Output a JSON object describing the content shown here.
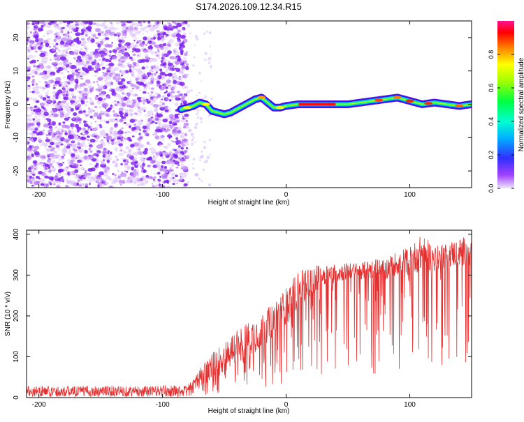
{
  "title": "S174.2026.109.12.34.R15",
  "colors": {
    "cloud": "#8a2be2",
    "signal_line": "#e53030",
    "axis": "#000000",
    "colormap": [
      "#e0e0ff",
      "#9b30ff",
      "#4040ff",
      "#00c8ff",
      "#00ff80",
      "#80ff00",
      "#ffff00",
      "#ff8000",
      "#ff0000",
      "#ff1090"
    ]
  },
  "chart_data": [
    {
      "type": "heatmap",
      "name": "spectrogram",
      "xlabel": "Height of straight line (km)",
      "ylabel": "Frequency (Hz)",
      "xlim": [
        -210,
        150
      ],
      "ylim": [
        -25,
        25
      ],
      "x_ticks": [
        -200,
        -100,
        0,
        100
      ],
      "y_ticks": [
        -20,
        -10,
        0,
        10,
        20
      ],
      "noise_region": {
        "x_range": [
          -210,
          -80
        ],
        "freq_range": [
          -25,
          25
        ]
      },
      "ridge": {
        "x": [
          -85,
          -80,
          -75,
          -70,
          -65,
          -60,
          -55,
          -50,
          -45,
          -40,
          -35,
          -30,
          -25,
          -20,
          -15,
          -10,
          -5,
          0,
          10,
          20,
          30,
          40,
          50,
          60,
          70,
          80,
          90,
          100,
          110,
          120,
          130,
          140,
          150
        ],
        "freq": [
          -1.5,
          -1.0,
          -0.5,
          0.5,
          0,
          -2,
          -2.5,
          -3,
          -2.5,
          -1.5,
          -0.5,
          0.5,
          1.5,
          2,
          0.5,
          -1,
          -1,
          -0.5,
          0,
          0,
          0,
          0,
          0,
          0.5,
          1,
          1.5,
          2,
          1,
          0,
          0.5,
          0,
          -0.5,
          0
        ]
      },
      "colorbar": {
        "label": "Normalized spectral amplitude",
        "range": [
          0.0,
          1.0
        ],
        "ticks": [
          0.0,
          0.2,
          0.4,
          0.6,
          0.8
        ],
        "tick_labels": [
          "0.0",
          "0.2",
          "0.4",
          "0.6",
          "0.8"
        ]
      }
    },
    {
      "type": "line",
      "name": "snr",
      "xlabel": "Height of straight line (km)",
      "ylabel": "SNR (10 * v/v)",
      "xlim": [
        -210,
        150
      ],
      "ylim": [
        0,
        410
      ],
      "x_ticks": [
        -200,
        -100,
        0,
        100
      ],
      "y_ticks": [
        0,
        100,
        200,
        300,
        400
      ],
      "series": [
        {
          "name": "SNR",
          "x": [
            -210,
            -180,
            -150,
            -120,
            -100,
            -80,
            -70,
            -60,
            -50,
            -40,
            -30,
            -20,
            -10,
            0,
            10,
            20,
            30,
            40,
            50,
            60,
            70,
            80,
            90,
            100,
            110,
            120,
            130,
            140,
            150
          ],
          "upper": [
            30,
            28,
            30,
            28,
            30,
            30,
            70,
            110,
            140,
            170,
            190,
            210,
            230,
            270,
            310,
            320,
            330,
            330,
            330,
            330,
            340,
            340,
            360,
            370,
            400,
            370,
            380,
            390,
            400
          ],
          "base": [
            12,
            12,
            12,
            12,
            12,
            15,
            25,
            40,
            60,
            80,
            100,
            120,
            150,
            180,
            220,
            250,
            270,
            280,
            290,
            290,
            290,
            290,
            300,
            300,
            310,
            310,
            320,
            320,
            330
          ]
        }
      ]
    }
  ]
}
